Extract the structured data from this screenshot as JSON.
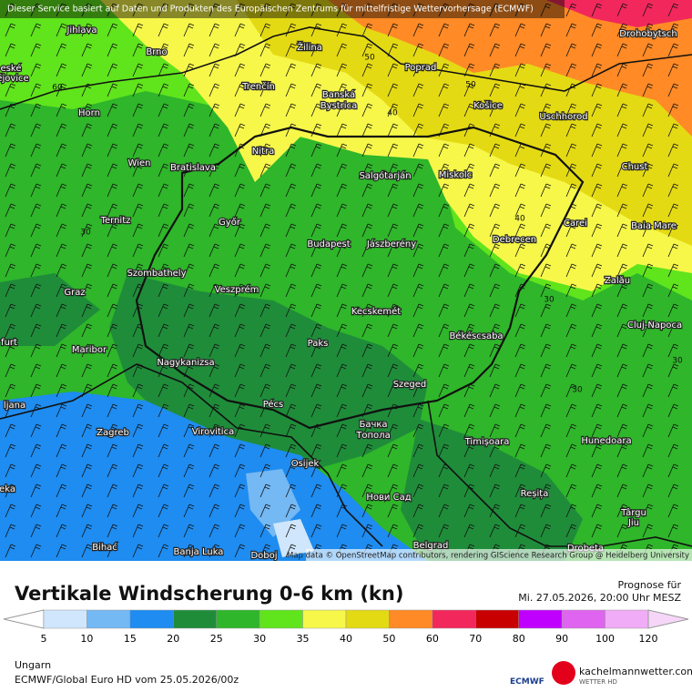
{
  "header": {
    "notice": "Dieser Service basiert auf Daten und Produkten des Europäischen Zentrums für mittelfristige Wettervorhersage (ECMWF)"
  },
  "map": {
    "cities": [
      "Jihlava",
      "Brno",
      "Žilina",
      "Poprad",
      "Drohobytsch",
      "eské",
      "ějovice",
      "Trenčín",
      "Banská",
      "Bystrica",
      "Košice",
      "Uschhorod",
      "Horn",
      "Nitra",
      "Wien",
      "Bratislava",
      "Salgótarján",
      "Miskolc",
      "Chust",
      "Ternitz",
      "Győr",
      "Carei",
      "Baia Mare",
      "Budapest",
      "Jászberény",
      "Debrecen",
      "Szombathely",
      "Zalău",
      "Graz",
      "Veszprém",
      "Kecskemét",
      "Cluj-Napoca",
      "Paks",
      "Békéscsaba",
      "furt",
      "Maribor",
      "Nagykanizsa",
      "Szeged",
      "ljana",
      "Pécs",
      "Бачка",
      "Топола",
      "Zagreb",
      "Virovitica",
      "Timișoara",
      "Hunedoara",
      "Osijek",
      "eka",
      "Нови Сад",
      "Reșița",
      "Târgu",
      "Jiu",
      "Bihać",
      "Banja Luka",
      "Doboj",
      "Belgrad",
      "Drobeta"
    ],
    "contour_labels": [
      50,
      50,
      40,
      60,
      40,
      30,
      30,
      30,
      30
    ],
    "attribution": "Map data © OpenStreetMap contributors, rendering GIScience Research Group @ Heidelberg University"
  },
  "footer": {
    "title": "Vertikale Windscherung 0-6 km (kn)",
    "forecast_label": "Prognose für",
    "forecast_time": "Mi. 27.05.2026, 20:00 Uhr MESZ",
    "legend": {
      "ticks": [
        5,
        10,
        15,
        20,
        25,
        30,
        35,
        40,
        50,
        60,
        70,
        80,
        90,
        100,
        120
      ],
      "colors": [
        "#cfe6fc",
        "#74b8f4",
        "#1e8cf0",
        "#1f8c3a",
        "#2fb62a",
        "#60e41c",
        "#f7f74a",
        "#e4da14",
        "#ff8a26",
        "#f2285c",
        "#c80000",
        "#c000ff",
        "#df64f0",
        "#f0acf6"
      ]
    },
    "region": "Ungarn",
    "model_run": "ECMWF/Global Euro HD vom  25.05.2026/00z",
    "ecmwf_logo": "ECMWF",
    "site": "kachelmannwetter.com",
    "site_sub": "WETTER HD"
  }
}
